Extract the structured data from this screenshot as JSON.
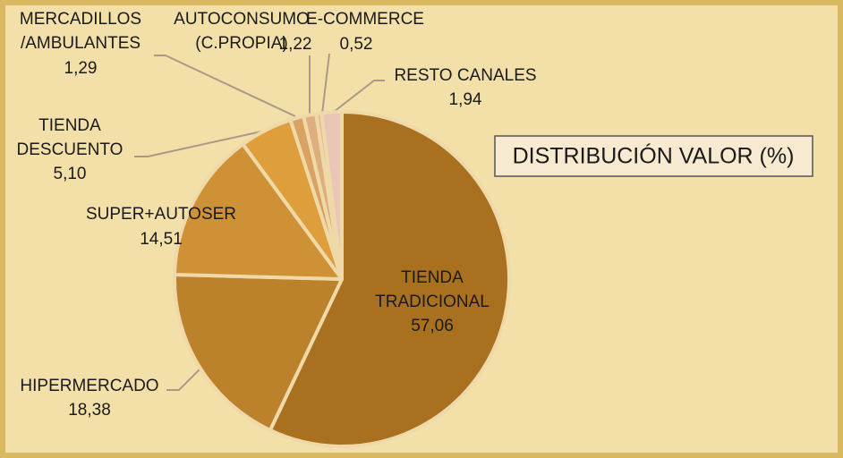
{
  "chart_data": {
    "type": "pie",
    "title": "DISTRIBUCIÓN VALOR (%)",
    "categories": [
      "TIENDA\nTRADICIONAL",
      "HIPERMERCADO",
      "SUPER+AUTOSER",
      "TIENDA\nDESCUENTO",
      "MERCADILLOS\n/AMBULANTES",
      "AUTOCONSUMO\n(C.PROPIA)",
      "E-COMMERCE",
      "RESTO CANALES"
    ],
    "values": [
      57.06,
      18.38,
      14.51,
      5.1,
      1.29,
      1.22,
      0.52,
      1.94
    ],
    "value_labels": [
      "57,06",
      "18,38",
      "14,51",
      "5,10",
      "1,29",
      "1,22",
      "0,52",
      "1,94"
    ],
    "colors": [
      "#a9711f",
      "#bb812b",
      "#cf9135",
      "#de9e3c",
      "#d9a262",
      "#dfae7e",
      "#e6bb94",
      "#e9c6b6"
    ]
  }
}
